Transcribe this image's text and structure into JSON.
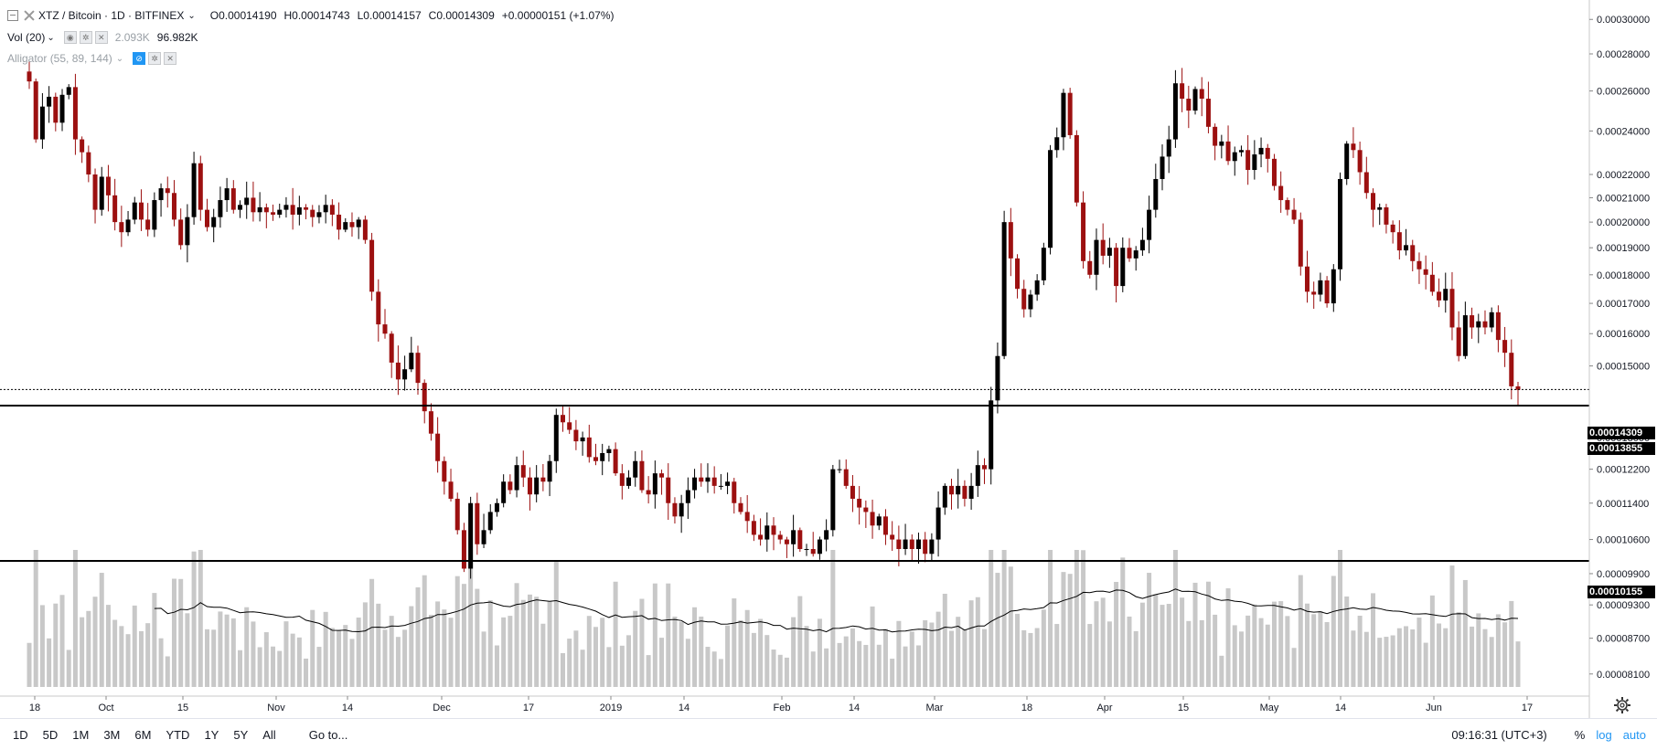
{
  "header": {
    "symbol": "XTZ / Bitcoin · 1D · BITFINEX",
    "open_label": "O",
    "open": "0.00014190",
    "high_label": "H",
    "high": "0.00014743",
    "low_label": "L",
    "low": "0.00014157",
    "close_label": "C",
    "close": "0.00014309",
    "change": "+0.00000151 (+1.07%)"
  },
  "indicators": [
    {
      "name": "Vol (20)",
      "value1": "2.093K",
      "value2": "96.982K"
    },
    {
      "name": "Alligator (55, 89, 144)"
    }
  ],
  "price_tags": {
    "last": "0.00014309",
    "level1": "0.00013855",
    "level2": "0.00010155"
  },
  "bottom_bar": {
    "ranges": [
      "1D",
      "5D",
      "1M",
      "3M",
      "6M",
      "YTD",
      "1Y",
      "5Y",
      "All"
    ],
    "goto": "Go to...",
    "clock": "09:16:31 (UTC+3)",
    "percent": "%",
    "log": "log",
    "auto": "auto"
  },
  "colors": {
    "up": "#000000",
    "down": "#9c1010",
    "volume": "#c8c8c8",
    "ma": "#000000",
    "grid_line": "#000000"
  },
  "icons": {
    "settings": "gear-icon",
    "eye": "eye-icon",
    "close": "close-icon"
  },
  "chart_data": {
    "type": "candlestick",
    "scale": "log",
    "y_ticks": [
      "0.00030000",
      "0.00028000",
      "0.00026000",
      "0.00024000",
      "0.00022000",
      "0.00021000",
      "0.00020000",
      "0.00019000",
      "0.00018000",
      "0.00017000",
      "0.00016000",
      "0.00015000",
      "0.00013000",
      "0.00012200",
      "0.00011400",
      "0.00010600",
      "0.00009900",
      "0.00009300",
      "0.00008700",
      "0.00008100"
    ],
    "x_ticks": [
      "18",
      "Oct",
      "15",
      "Nov",
      "14",
      "Dec",
      "17",
      "2019",
      "14",
      "Feb",
      "14",
      "Mar",
      "18",
      "Apr",
      "15",
      "May",
      "14",
      "Jun",
      "17"
    ],
    "horizontal_lines": [
      0.00013855,
      0.00010155
    ],
    "last_price": 0.00014309,
    "close": [
      0.000265,
      0.000236,
      0.000252,
      0.000257,
      0.000244,
      0.000258,
      0.000262,
      0.000236,
      0.00023,
      0.00022,
      0.000205,
      0.000219,
      0.000211,
      0.0002,
      0.000196,
      0.000201,
      0.000208,
      0.000201,
      0.000197,
      0.000209,
      0.000214,
      0.000212,
      0.000201,
      0.000191,
      0.000202,
      0.000225,
      0.000205,
      0.000198,
      0.000202,
      0.000209,
      0.000214,
      0.000205,
      0.000207,
      0.00021,
      0.000204,
      0.000206,
      0.000204,
      0.000203,
      0.000205,
      0.000207,
      0.000203,
      0.000206,
      0.000205,
      0.000202,
      0.000204,
      0.000207,
      0.000203,
      0.000197,
      0.0002,
      0.000198,
      0.000201,
      0.000193,
      0.000174,
      0.000163,
      0.00016,
      0.000151,
      0.000146,
      0.000149,
      0.000154,
      0.000145,
      0.000137,
      0.000131,
      0.000124,
      0.000119,
      0.000115,
      0.000108,
      0.0001,
      0.000114,
      0.000105,
      0.000108,
      0.000112,
      0.000114,
      0.000119,
      0.000117,
      0.000123,
      0.00012,
      0.000116,
      0.00012,
      0.000119,
      0.000124,
      0.000136,
      0.000134,
      0.000132,
      0.000129,
      0.00013,
      0.000125,
      0.000124,
      0.000126,
      0.000127,
      0.000121,
      0.000118,
      0.00012,
      0.000124,
      0.000117,
      0.000116,
      0.000121,
      0.00012,
      0.000114,
      0.000111,
      0.000114,
      0.000117,
      0.00012,
      0.000119,
      0.00012,
      0.000118,
      0.000118,
      0.000119,
      0.000114,
      0.000112,
      0.00011,
      0.000107,
      0.000106,
      0.000109,
      0.000107,
      0.000106,
      0.000105,
      0.000108,
      0.000104,
      0.000104,
      0.000103,
      0.000106,
      0.000108,
      0.000122,
      0.000122,
      0.000118,
      0.000115,
      0.000113,
      0.000112,
      0.000109,
      0.000111,
      0.000107,
      0.000106,
      0.000104,
      0.000106,
      0.000104,
      0.000106,
      0.000103,
      0.000106,
      0.000113,
      0.000118,
      0.000116,
      0.000118,
      0.000115,
      0.000118,
      0.000123,
      0.000122,
      0.00014,
      0.000153,
      0.0002,
      0.000186,
      0.000175,
      0.000168,
      0.000173,
      0.000178,
      0.00019,
      0.000231,
      0.000237,
      0.000259,
      0.000238,
      0.000208,
      0.000185,
      0.00018,
      0.000193,
      0.000187,
      0.00019,
      0.000176,
      0.00019,
      0.000186,
      0.000189,
      0.000193,
      0.000205,
      0.000218,
      0.000228,
      0.000236,
      0.000264,
      0.000256,
      0.00025,
      0.000261,
      0.000256,
      0.000242,
      0.000233,
      0.000235,
      0.000226,
      0.00023,
      0.000231,
      0.000222,
      0.000229,
      0.000232,
      0.000227,
      0.000215,
      0.000209,
      0.000205,
      0.000201,
      0.000183,
      0.000174,
      0.000173,
      0.000178,
      0.00017,
      0.000182,
      0.000218,
      0.000234,
      0.000231,
      0.000221,
      0.000212,
      0.000205,
      0.000206,
      0.000199,
      0.000196,
      0.000189,
      0.000191,
      0.000185,
      0.000182,
      0.00018,
      0.000174,
      0.000171,
      0.000175,
      0.000162,
      0.000153,
      0.000166,
      0.000162,
      0.000164,
      0.000162,
      0.000167,
      0.000158,
      0.000154,
      0.000144,
      0.000143
    ],
    "volume_ma_level": 0.3
  }
}
